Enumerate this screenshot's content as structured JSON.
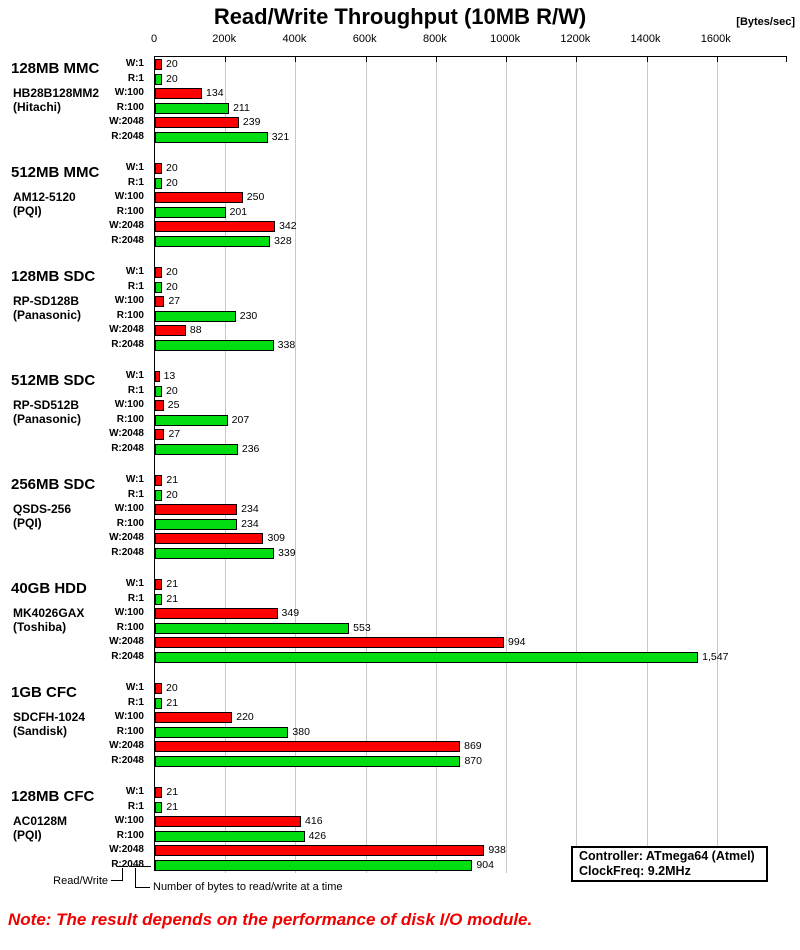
{
  "title": "Read/Write Throughput (10MB R/W)",
  "unit_label": "[Bytes/sec]",
  "note": "Note: The result depends on the performance of disk I/O module.",
  "info_box": {
    "line1": "Controller: ATmega64 (Atmel)",
    "line2": "ClockFreq: 9.2MHz"
  },
  "footnotes": {
    "read_write": "Read/Write",
    "bytes": "Number of bytes to read/write at a time"
  },
  "colors": {
    "write_bar": "#ff0000",
    "read_bar": "#00dd11",
    "bar_border": "#000000",
    "gridline": "#c8c8c8",
    "axis": "#000000",
    "note_text": "#f00000"
  },
  "chart_data": {
    "type": "bar",
    "orientation": "horizontal",
    "title": "Read/Write Throughput (10MB R/W)",
    "xlabel": "[Bytes/sec]",
    "x_axis": {
      "ticks": [
        "0",
        "200k",
        "400k",
        "600k",
        "800k",
        "1000k",
        "1200k",
        "1400k",
        "1600k"
      ],
      "tick_values_bytes": [
        0,
        200000,
        400000,
        600000,
        800000,
        1000000,
        1200000,
        1400000,
        1600000
      ],
      "axis_max_bytes": 1800000,
      "grid": true
    },
    "value_scale_to_bytes": 1000,
    "row_labels": [
      "W:1",
      "R:1",
      "W:100",
      "R:100",
      "W:2048",
      "R:2048"
    ],
    "row_kinds": [
      "write",
      "read",
      "write",
      "read",
      "write",
      "read"
    ],
    "groups": [
      {
        "name": "128MB MMC",
        "model": "HB28B128MM2",
        "maker": "(Hitachi)",
        "values": [
          20,
          20,
          134,
          211,
          239,
          321
        ]
      },
      {
        "name": "512MB MMC",
        "model": "AM12-5120",
        "maker": "(PQI)",
        "values": [
          20,
          20,
          250,
          201,
          342,
          328
        ]
      },
      {
        "name": "128MB SDC",
        "model": "RP-SD128B",
        "maker": "(Panasonic)",
        "values": [
          20,
          20,
          27,
          230,
          88,
          338
        ]
      },
      {
        "name": "512MB SDC",
        "model": "RP-SD512B",
        "maker": "(Panasonic)",
        "values": [
          13,
          20,
          25,
          207,
          27,
          236
        ]
      },
      {
        "name": "256MB SDC",
        "model": "QSDS-256",
        "maker": "(PQI)",
        "values": [
          21,
          20,
          234,
          234,
          309,
          339
        ]
      },
      {
        "name": "40GB HDD",
        "model": "MK4026GAX",
        "maker": "(Toshiba)",
        "values": [
          21,
          21,
          349,
          553,
          994,
          1547
        ]
      },
      {
        "name": "1GB CFC",
        "model": "SDCFH-1024",
        "maker": "(Sandisk)",
        "values": [
          20,
          21,
          220,
          380,
          869,
          870
        ]
      },
      {
        "name": "128MB CFC",
        "model": "AC0128M",
        "maker": "(PQI)",
        "values": [
          21,
          21,
          416,
          426,
          938,
          904
        ]
      }
    ]
  }
}
